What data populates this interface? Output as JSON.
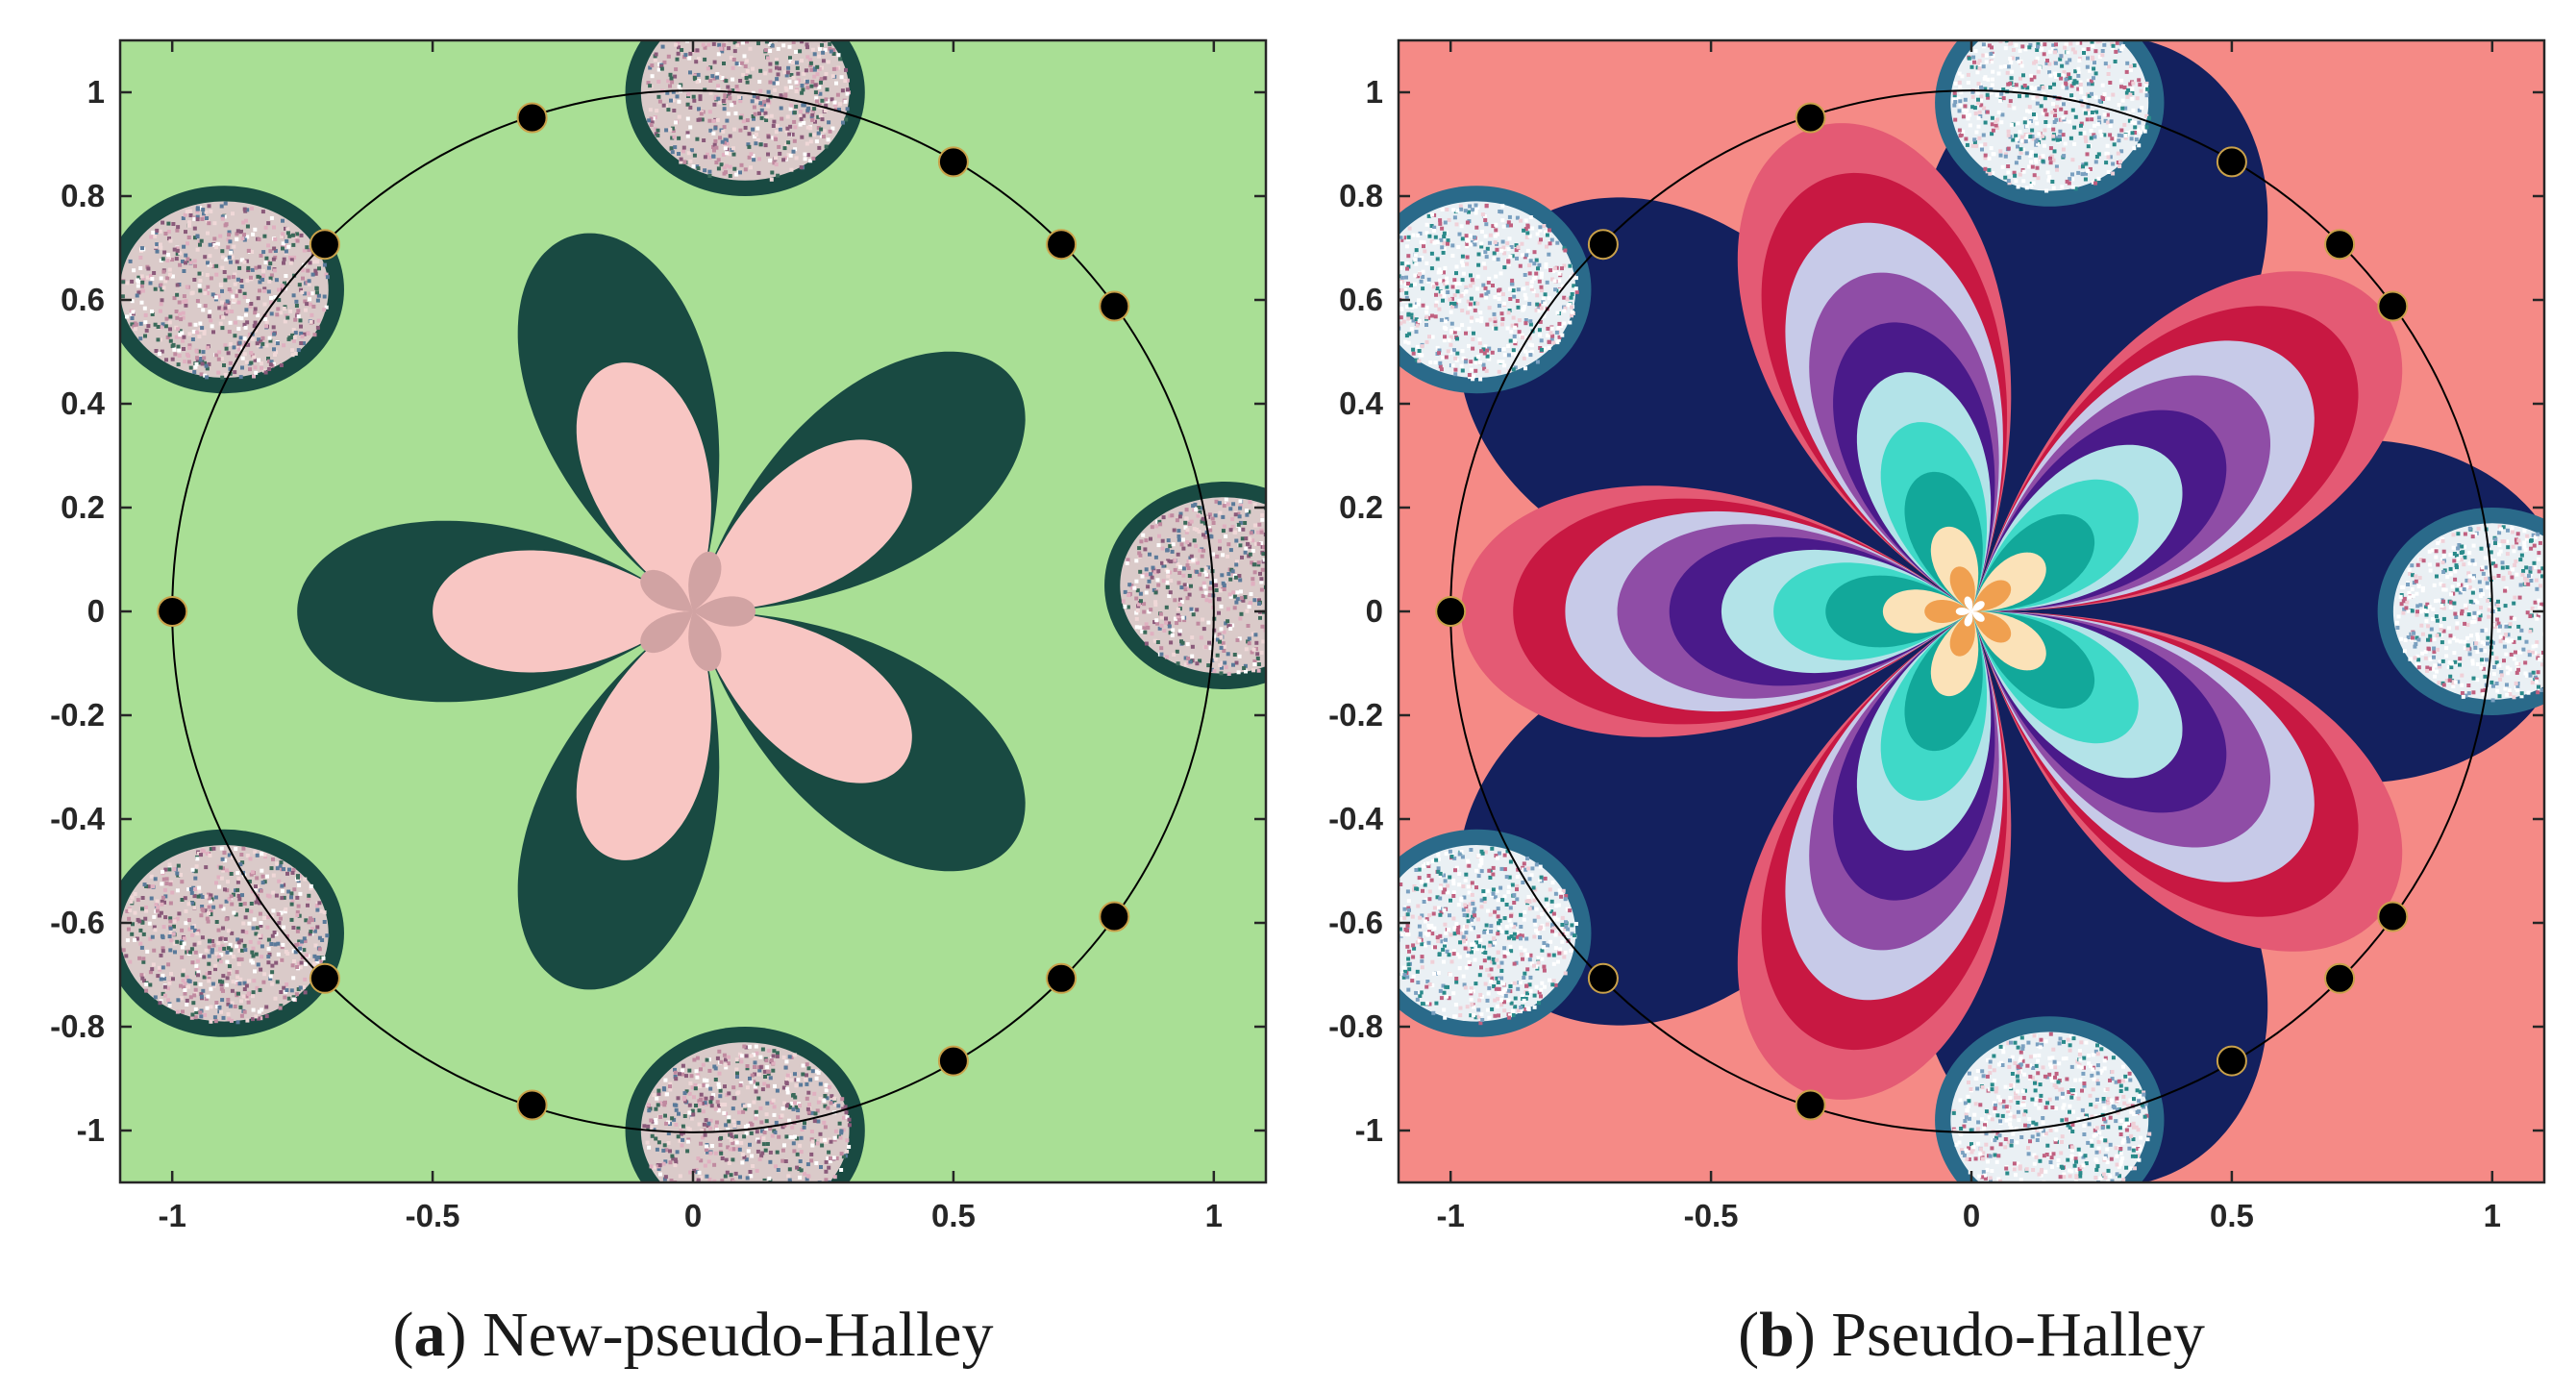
{
  "panels": [
    {
      "id": "a",
      "caption_letter": "a",
      "caption_title": "New-pseudo-Halley",
      "x_ticks": [
        "-1",
        "-0.5",
        "0",
        "0.5",
        "1"
      ],
      "y_ticks": [
        "1",
        "0.8",
        "0.6",
        "0.4",
        "0.2",
        "0",
        "-0.2",
        "-0.4",
        "-0.6",
        "-0.8",
        "-1"
      ],
      "x_tick_values": [
        -1,
        -0.5,
        0,
        0.5,
        1
      ],
      "y_tick_values": [
        1,
        0.8,
        0.6,
        0.4,
        0.2,
        0,
        -0.2,
        -0.4,
        -0.6,
        -0.8,
        -1
      ],
      "xlim": [
        -1.1,
        1.1
      ],
      "ylim": [
        -1.1,
        1.1
      ],
      "background_color": "#a9df95",
      "petal_color": "#194a42",
      "inner_petal_color": "#f8c6c3",
      "center_color": "#d1a3a3",
      "noise_palette": [
        "#f0d8d8",
        "#8a5a7a",
        "#3a6a5a",
        "#e0b0c0",
        "#ffffff",
        "#5a7a9a",
        "#c08aa0"
      ],
      "roots": [
        [
          -1,
          0
        ],
        [
          -0.707,
          0.707
        ],
        [
          -0.707,
          -0.707
        ],
        [
          -0.309,
          0.951
        ],
        [
          -0.309,
          -0.951
        ],
        [
          0.5,
          0.866
        ],
        [
          0.5,
          -0.866
        ],
        [
          0.707,
          0.707
        ],
        [
          0.707,
          -0.707
        ],
        [
          0.809,
          0.588
        ],
        [
          0.809,
          -0.588
        ]
      ]
    },
    {
      "id": "b",
      "caption_letter": "b",
      "caption_title": "Pseudo-Halley",
      "x_ticks": [
        "-1",
        "-0.5",
        "0",
        "0.5",
        "1"
      ],
      "y_ticks": [
        "1",
        "0.8",
        "0.6",
        "0.4",
        "0.2",
        "0",
        "-0.2",
        "-0.4",
        "-0.6",
        "-0.8",
        "-1"
      ],
      "x_tick_values": [
        -1,
        -0.5,
        0,
        0.5,
        1
      ],
      "y_tick_values": [
        1,
        0.8,
        0.6,
        0.4,
        0.2,
        0,
        -0.2,
        -0.4,
        -0.6,
        -0.8,
        -1
      ],
      "xlim": [
        -1.1,
        1.1
      ],
      "ylim": [
        -1.1,
        1.1
      ],
      "background_color": "#f58a86",
      "dark_band_color": "#13205e",
      "band_colors": [
        "#e45a74",
        "#c81842",
        "#c7cae8",
        "#8f4da6",
        "#4a1a8a",
        "#b3e3e8",
        "#3fd9c8",
        "#12a89a",
        "#fbe2b8",
        "#f0a050",
        "#ffffff"
      ],
      "noise_palette": [
        "#ffffff",
        "#ffffff",
        "#f0d0d8",
        "#7aa0c0",
        "#c06080",
        "#2a8a8a"
      ],
      "roots": [
        [
          -1,
          0
        ],
        [
          -0.707,
          0.707
        ],
        [
          -0.707,
          -0.707
        ],
        [
          -0.309,
          0.951
        ],
        [
          -0.309,
          -0.951
        ],
        [
          0.5,
          0.866
        ],
        [
          0.5,
          -0.866
        ],
        [
          0.707,
          0.707
        ],
        [
          0.707,
          -0.707
        ],
        [
          0.809,
          0.588
        ],
        [
          0.809,
          -0.588
        ]
      ]
    }
  ]
}
